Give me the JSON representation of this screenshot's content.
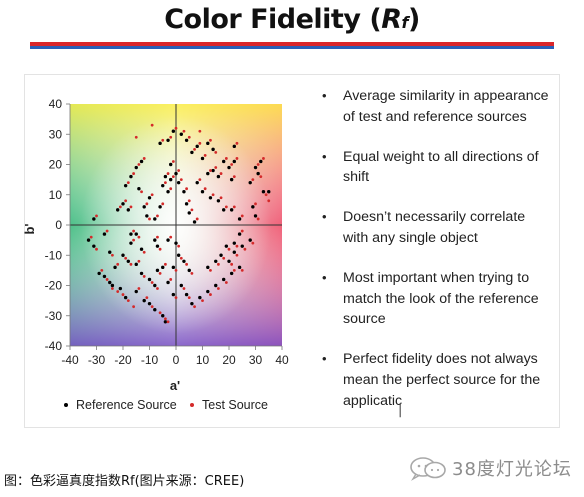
{
  "slide": {
    "title_prefix": "Color Fidelity (",
    "title_symbol": "R",
    "title_subscript": "f",
    "title_suffix": ")"
  },
  "bullets": [
    "Average similarity in appearance of test and reference sources",
    "Equal weight to all directions of shift",
    "Doesn’t necessarily correlate with any single object",
    "Most important when trying to match the look of the reference source",
    "Perfect fidelity does not always mean the perfect source for the applicatic"
  ],
  "caption": "图：色彩逼真度指数Rf(图片来源：CREE)",
  "watermark": "38度灯光论坛",
  "chart_data": {
    "type": "scatter",
    "xlabel": "a'",
    "ylabel": "b'",
    "xlim": [
      -40,
      40
    ],
    "ylim": [
      -40,
      40
    ],
    "xticks": [
      "-40",
      "-30",
      "-20",
      "-10",
      "0",
      "10",
      "20",
      "30",
      "40"
    ],
    "yticks": [
      "40",
      "30",
      "20",
      "10",
      "0",
      "-10",
      "-20",
      "-30",
      "-40"
    ],
    "grid": false,
    "legend_position": "bottom",
    "colors": {
      "reference": "#000000",
      "test": "#d42a2a",
      "axis": "#333333"
    },
    "series": [
      {
        "name": "Reference Source",
        "marker": "dot",
        "points": [
          [
            -31,
            2
          ],
          [
            -33,
            -5
          ],
          [
            -31,
            -7
          ],
          [
            -29,
            -16
          ],
          [
            -27,
            -17
          ],
          [
            -25,
            -19
          ],
          [
            -24,
            -20
          ],
          [
            -21,
            -21
          ],
          [
            -19,
            -24
          ],
          [
            -22,
            5
          ],
          [
            -20,
            7
          ],
          [
            -18,
            5
          ],
          [
            -17,
            -3
          ],
          [
            -17,
            -6
          ],
          [
            -15,
            -3
          ],
          [
            -20,
            -10
          ],
          [
            -18,
            -12
          ],
          [
            -15,
            -13
          ],
          [
            -13,
            -16
          ],
          [
            -15,
            -22
          ],
          [
            -12,
            -25
          ],
          [
            -10,
            -26
          ],
          [
            -8,
            -28
          ],
          [
            -5,
            -30
          ],
          [
            -4,
            -32
          ],
          [
            -10,
            -18
          ],
          [
            -8,
            -20
          ],
          [
            -7,
            -15
          ],
          [
            -3,
            -19
          ],
          [
            -5,
            -14
          ],
          [
            -8,
            -5
          ],
          [
            -7,
            -7
          ],
          [
            -3,
            -5
          ],
          [
            0,
            -6
          ],
          [
            1,
            -10
          ],
          [
            3,
            -12
          ],
          [
            5,
            -15
          ],
          [
            -19,
            13
          ],
          [
            -17,
            16
          ],
          [
            -15,
            19
          ],
          [
            -13,
            21
          ],
          [
            -14,
            12
          ],
          [
            -10,
            9
          ],
          [
            -12,
            6
          ],
          [
            -11,
            3
          ],
          [
            -8,
            2
          ],
          [
            -6,
            6
          ],
          [
            -5,
            13
          ],
          [
            -4,
            16
          ],
          [
            -3,
            11
          ],
          [
            -2,
            15
          ],
          [
            -2,
            20
          ],
          [
            0,
            17
          ],
          [
            1,
            14
          ],
          [
            3,
            11
          ],
          [
            4,
            7
          ],
          [
            5,
            4
          ],
          [
            7,
            1
          ],
          [
            -6,
            27
          ],
          [
            -3,
            28
          ],
          [
            -1,
            31
          ],
          [
            2,
            30
          ],
          [
            4,
            28
          ],
          [
            6,
            24
          ],
          [
            8,
            26
          ],
          [
            10,
            22
          ],
          [
            12,
            27
          ],
          [
            14,
            25
          ],
          [
            12,
            17
          ],
          [
            14,
            18
          ],
          [
            16,
            16
          ],
          [
            18,
            21
          ],
          [
            20,
            19
          ],
          [
            21,
            15
          ],
          [
            22,
            21
          ],
          [
            22,
            26
          ],
          [
            8,
            14
          ],
          [
            10,
            11
          ],
          [
            13,
            9
          ],
          [
            16,
            8
          ],
          [
            18,
            5
          ],
          [
            21,
            5
          ],
          [
            24,
            2
          ],
          [
            30,
            19
          ],
          [
            32,
            21
          ],
          [
            31,
            17
          ],
          [
            28,
            14
          ],
          [
            33,
            11
          ],
          [
            35,
            11
          ],
          [
            29,
            6
          ],
          [
            30,
            3
          ],
          [
            24,
            -3
          ],
          [
            22,
            -6
          ],
          [
            19,
            -7
          ],
          [
            17,
            -10
          ],
          [
            15,
            -12
          ],
          [
            12,
            -14
          ],
          [
            21,
            -16
          ],
          [
            18,
            -18
          ],
          [
            15,
            -20
          ],
          [
            12,
            -22
          ],
          [
            9,
            -24
          ],
          [
            6,
            -26
          ],
          [
            4,
            -23
          ],
          [
            2,
            -20
          ],
          [
            -1,
            -23
          ],
          [
            20,
            -12
          ],
          [
            22,
            -9
          ],
          [
            25,
            -7
          ],
          [
            28,
            -5
          ],
          [
            24,
            -14
          ],
          [
            -27,
            -3
          ],
          [
            -25,
            -9
          ],
          [
            -23,
            -14
          ],
          [
            -13,
            -8
          ],
          [
            -1,
            -14
          ]
        ]
      },
      {
        "name": "Test Source",
        "marker": "dot",
        "points": [
          [
            -30,
            3
          ],
          [
            -32,
            -4
          ],
          [
            -30,
            -8
          ],
          [
            -28,
            -15
          ],
          [
            -26,
            -18
          ],
          [
            -24,
            -21
          ],
          [
            -22,
            -22
          ],
          [
            -20,
            -23
          ],
          [
            -18,
            -25
          ],
          [
            -21,
            6
          ],
          [
            -19,
            8
          ],
          [
            -17,
            6
          ],
          [
            -16,
            -2
          ],
          [
            -16,
            -5
          ],
          [
            -14,
            -4
          ],
          [
            -19,
            -11
          ],
          [
            -17,
            -13
          ],
          [
            -14,
            -12
          ],
          [
            -12,
            -17
          ],
          [
            -14,
            -21
          ],
          [
            -11,
            -24
          ],
          [
            -9,
            -27
          ],
          [
            -6,
            -29
          ],
          [
            -4,
            -31
          ],
          [
            -3,
            -32
          ],
          [
            -9,
            -19
          ],
          [
            -7,
            -21
          ],
          [
            -6,
            -16
          ],
          [
            -2,
            -18
          ],
          [
            -4,
            -13
          ],
          [
            -7,
            -4
          ],
          [
            -6,
            -8
          ],
          [
            -2,
            -4
          ],
          [
            1,
            -7
          ],
          [
            2,
            -11
          ],
          [
            4,
            -13
          ],
          [
            6,
            -16
          ],
          [
            -18,
            14
          ],
          [
            -16,
            17
          ],
          [
            -14,
            20
          ],
          [
            -12,
            22
          ],
          [
            -13,
            11
          ],
          [
            -9,
            10
          ],
          [
            -11,
            7
          ],
          [
            -10,
            2
          ],
          [
            -7,
            3
          ],
          [
            -5,
            7
          ],
          [
            -4,
            14
          ],
          [
            -3,
            17
          ],
          [
            -2,
            12
          ],
          [
            -1,
            16
          ],
          [
            -1,
            21
          ],
          [
            1,
            18
          ],
          [
            2,
            15
          ],
          [
            4,
            12
          ],
          [
            5,
            8
          ],
          [
            6,
            5
          ],
          [
            8,
            2
          ],
          [
            -5,
            28
          ],
          [
            -2,
            29
          ],
          [
            0,
            32
          ],
          [
            3,
            31
          ],
          [
            5,
            29
          ],
          [
            7,
            25
          ],
          [
            9,
            27
          ],
          [
            11,
            23
          ],
          [
            13,
            28
          ],
          [
            15,
            24
          ],
          [
            13,
            18
          ],
          [
            15,
            19
          ],
          [
            17,
            17
          ],
          [
            19,
            22
          ],
          [
            21,
            20
          ],
          [
            22,
            16
          ],
          [
            23,
            22
          ],
          [
            23,
            27
          ],
          [
            9,
            15
          ],
          [
            11,
            12
          ],
          [
            14,
            10
          ],
          [
            17,
            9
          ],
          [
            19,
            6
          ],
          [
            22,
            6
          ],
          [
            25,
            3
          ],
          [
            31,
            20
          ],
          [
            33,
            22
          ],
          [
            32,
            16
          ],
          [
            29,
            15
          ],
          [
            34,
            10
          ],
          [
            35,
            8
          ],
          [
            30,
            7
          ],
          [
            31,
            2
          ],
          [
            25,
            -2
          ],
          [
            23,
            -7
          ],
          [
            20,
            -8
          ],
          [
            18,
            -11
          ],
          [
            16,
            -13
          ],
          [
            13,
            -15
          ],
          [
            22,
            -15
          ],
          [
            19,
            -19
          ],
          [
            16,
            -21
          ],
          [
            13,
            -23
          ],
          [
            10,
            -25
          ],
          [
            7,
            -27
          ],
          [
            5,
            -24
          ],
          [
            3,
            -21
          ],
          [
            0,
            -24
          ],
          [
            21,
            -13
          ],
          [
            23,
            -10
          ],
          [
            26,
            -8
          ],
          [
            29,
            -6
          ],
          [
            25,
            -15
          ],
          [
            -26,
            -2
          ],
          [
            -24,
            -10
          ],
          [
            -22,
            -13
          ],
          [
            -12,
            -9
          ],
          [
            0,
            -15
          ],
          [
            -15,
            29
          ],
          [
            -9,
            33
          ],
          [
            9,
            31
          ],
          [
            -16,
            -27
          ]
        ]
      }
    ]
  }
}
